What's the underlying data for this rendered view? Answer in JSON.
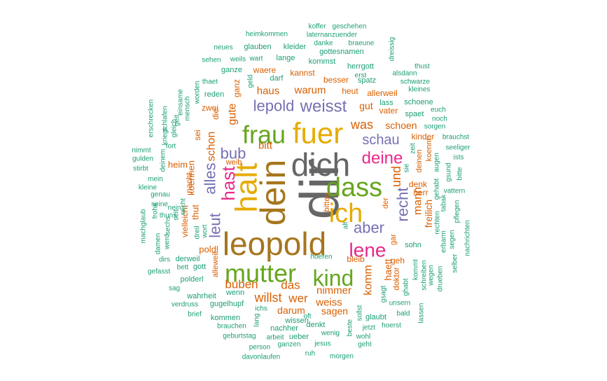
{
  "palette": {
    "c1": "#666666",
    "c2": "#A6761D",
    "c3": "#E6AB02",
    "c4": "#66A61E",
    "c5": "#E7298A",
    "c6": "#7570B3",
    "c7": "#D95F02",
    "c8": "#1B9E77"
  },
  "words": [
    {
      "text": "dir",
      "color": "c1",
      "size": 10
    },
    {
      "text": "dich",
      "color": "c1",
      "size": 9.2
    },
    {
      "text": "dein",
      "color": "c2",
      "size": 8.6
    },
    {
      "text": "leopold",
      "color": "c2",
      "size": 8.6
    },
    {
      "text": "halt",
      "color": "c3",
      "size": 8.0
    },
    {
      "text": "fuer",
      "color": "c3",
      "size": 8.0
    },
    {
      "text": "ich",
      "color": "c3",
      "size": 7.2
    },
    {
      "text": "dass",
      "color": "c4",
      "size": 7.0
    },
    {
      "text": "frau",
      "color": "c4",
      "size": 6.6
    },
    {
      "text": "mutter",
      "color": "c4",
      "size": 6.6
    },
    {
      "text": "kind",
      "color": "c4",
      "size": 6.0
    },
    {
      "text": "lene",
      "color": "c5",
      "size": 5.4
    },
    {
      "text": "hast",
      "color": "c5",
      "size": 5.4
    },
    {
      "text": "deine",
      "color": "c5",
      "size": 5.0
    },
    {
      "text": "weisst",
      "color": "c6",
      "size": 5.0
    },
    {
      "text": "lepold",
      "color": "c6",
      "size": 5.0
    },
    {
      "text": "bub",
      "color": "c6",
      "size": 4.6
    },
    {
      "text": "alles",
      "color": "c6",
      "size": 4.6
    },
    {
      "text": "aber",
      "color": "c6",
      "size": 4.6
    },
    {
      "text": "leut",
      "color": "c6",
      "size": 4.4
    },
    {
      "text": "recht",
      "color": "c6",
      "size": 4.4
    },
    {
      "text": "schau",
      "color": "c6",
      "size": 4.2
    },
    {
      "text": "was",
      "color": "c7",
      "size": 4.0
    },
    {
      "text": "und",
      "color": "c7",
      "size": 3.8
    },
    {
      "text": "mann",
      "color": "c7",
      "size": 3.6
    },
    {
      "text": "komm",
      "color": "c7",
      "size": 3.6
    },
    {
      "text": "willst",
      "color": "c7",
      "size": 3.6
    },
    {
      "text": "buben",
      "color": "c7",
      "size": 3.4
    },
    {
      "text": "das",
      "color": "c7",
      "size": 3.4
    },
    {
      "text": "wer",
      "color": "c7",
      "size": 3.4
    },
    {
      "text": "gute",
      "color": "c7",
      "size": 3.2
    },
    {
      "text": "bitt",
      "color": "c7",
      "size": 3.2
    },
    {
      "text": "schon",
      "color": "c7",
      "size": 3.2
    },
    {
      "text": "haus",
      "color": "c7",
      "size": 3.0
    },
    {
      "text": "warum",
      "color": "c7",
      "size": 3.0
    },
    {
      "text": "nimmer",
      "color": "c7",
      "size": 3.0
    },
    {
      "text": "weiss",
      "color": "c7",
      "size": 3.0
    },
    {
      "text": "sagen",
      "color": "c7",
      "size": 2.8
    },
    {
      "text": "darum",
      "color": "c7",
      "size": 2.8
    },
    {
      "text": "freilich",
      "color": "c7",
      "size": 2.8
    },
    {
      "text": "gut",
      "color": "c7",
      "size": 2.8
    },
    {
      "text": "schoen",
      "color": "c7",
      "size": 2.8
    },
    {
      "text": "haett",
      "color": "c7",
      "size": 2.8
    },
    {
      "text": "poldl",
      "color": "c7",
      "size": 2.8
    },
    {
      "text": "thut",
      "color": "c7",
      "size": 2.8
    },
    {
      "text": "koennen",
      "color": "c7",
      "size": 2.6
    },
    {
      "text": "heim",
      "color": "c7",
      "size": 2.6
    },
    {
      "text": "nacht",
      "color": "c7",
      "size": 2.4
    },
    {
      "text": "zwei",
      "color": "c7",
      "size": 2.4
    },
    {
      "text": "bleib",
      "color": "c7",
      "size": 2.4
    },
    {
      "text": "geh",
      "color": "c7",
      "size": 2.4
    },
    {
      "text": "besser",
      "color": "c7",
      "size": 2.4
    },
    {
      "text": "heut",
      "color": "c7",
      "size": 2.4
    },
    {
      "text": "kannst",
      "color": "c7",
      "size": 2.4
    },
    {
      "text": "waere",
      "color": "c7",
      "size": 2.4
    },
    {
      "text": "ganz",
      "color": "c7",
      "size": 2.4
    },
    {
      "text": "die",
      "color": "c7",
      "size": 2.4
    },
    {
      "text": "sei",
      "color": "c7",
      "size": 2.4
    },
    {
      "text": "vielleicht",
      "color": "c7",
      "size": 2.4
    },
    {
      "text": "allerweil",
      "color": "c7",
      "size": 2.4
    },
    {
      "text": "vater",
      "color": "c7",
      "size": 2.4
    },
    {
      "text": "kinder",
      "color": "c7",
      "size": 2.4
    },
    {
      "text": "denk",
      "color": "c7",
      "size": 2.4
    },
    {
      "text": "herr",
      "color": "c7",
      "size": 2.4
    },
    {
      "text": "doktor",
      "color": "c7",
      "size": 2.4
    },
    {
      "text": "alleweil",
      "color": "c7",
      "size": 2.2
    },
    {
      "text": "weib",
      "color": "c7",
      "size": 2.2
    },
    {
      "text": "koennt",
      "color": "c7",
      "size": 2.2
    },
    {
      "text": "deinen",
      "color": "c7",
      "size": 2.2
    },
    {
      "text": "bitten",
      "color": "c7",
      "size": 2.2
    },
    {
      "text": "der",
      "color": "c7",
      "size": 2.2
    },
    {
      "text": "gar",
      "color": "c7",
      "size": 2.2
    },
    {
      "text": "spaet",
      "color": "c8",
      "size": 2.2
    },
    {
      "text": "lass",
      "color": "c8",
      "size": 2.2
    },
    {
      "text": "schoene",
      "color": "c8",
      "size": 2.2
    },
    {
      "text": "herrgott",
      "color": "c8",
      "size": 2.2
    },
    {
      "text": "spatz",
      "color": "c8",
      "size": 2.2
    },
    {
      "text": "kommst",
      "color": "c8",
      "size": 2.2
    },
    {
      "text": "gottesnamen",
      "color": "c8",
      "size": 2.2
    },
    {
      "text": "kleider",
      "color": "c8",
      "size": 2.2
    },
    {
      "text": "glauben",
      "color": "c8",
      "size": 2.2
    },
    {
      "text": "lange",
      "color": "c8",
      "size": 2.2
    },
    {
      "text": "ganze",
      "color": "c8",
      "size": 2.2
    },
    {
      "text": "darf",
      "color": "c8",
      "size": 2.2
    },
    {
      "text": "reden",
      "color": "c8",
      "size": 2.2
    },
    {
      "text": "wenn",
      "color": "c8",
      "size": 2.2
    },
    {
      "text": "wahrheit",
      "color": "c8",
      "size": 2.2
    },
    {
      "text": "gugelhupf",
      "color": "c8",
      "size": 2.2
    },
    {
      "text": "kommen",
      "color": "c8",
      "size": 2.2
    },
    {
      "text": "nachher",
      "color": "c8",
      "size": 2.2
    },
    {
      "text": "wissen",
      "color": "c8",
      "size": 2.2
    },
    {
      "text": "denkt",
      "color": "c8",
      "size": 2.2
    },
    {
      "text": "ueber",
      "color": "c8",
      "size": 2.2
    },
    {
      "text": "glaubt",
      "color": "c8",
      "size": 2.2
    },
    {
      "text": "sohn",
      "color": "c8",
      "size": 2.2
    },
    {
      "text": "derweil",
      "color": "c8",
      "size": 2.2
    },
    {
      "text": "gott",
      "color": "c8",
      "size": 2.2
    },
    {
      "text": "polderl",
      "color": "c8",
      "size": 2.2
    },
    {
      "text": "ichs",
      "color": "c8",
      "size": 2.0
    },
    {
      "text": "hoeren",
      "color": "c8",
      "size": 2.0
    },
    {
      "text": "wenig",
      "color": "c8",
      "size": 2.0
    },
    {
      "text": "genau",
      "color": "c8",
      "size": 2.0
    },
    {
      "text": "augen",
      "color": "c8",
      "size": 2.0
    },
    {
      "text": "gehabt",
      "color": "c8",
      "size": 2.0
    },
    {
      "text": "rechten",
      "color": "c8",
      "size": 2.0
    },
    {
      "text": "erbarm",
      "color": "c8",
      "size": 2.0
    },
    {
      "text": "kommt",
      "color": "c8",
      "size": 2.0
    },
    {
      "text": "schreiben",
      "color": "c8",
      "size": 2.0
    },
    {
      "text": "wegen",
      "color": "c8",
      "size": 2.0
    },
    {
      "text": "kriegt",
      "color": "c8",
      "size": 2.0
    },
    {
      "text": "geit",
      "color": "c8",
      "size": 2.0
    },
    {
      "text": "mensch",
      "color": "c8",
      "size": 2.0
    },
    {
      "text": "worden",
      "color": "c8",
      "size": 2.0
    },
    {
      "text": "sechs",
      "color": "c8",
      "size": 2.0
    },
    {
      "text": "dreil",
      "color": "c8",
      "size": 2.0
    },
    {
      "text": "wort",
      "color": "c8",
      "size": 2.0
    },
    {
      "text": "thaet",
      "color": "c8",
      "size": 2.0
    },
    {
      "text": "wart",
      "color": "c8",
      "size": 2.0
    },
    {
      "text": "weils",
      "color": "c8",
      "size": 2.0
    },
    {
      "text": "sehen",
      "color": "c8",
      "size": 1.8
    },
    {
      "text": "neues",
      "color": "c8",
      "size": 1.8
    },
    {
      "text": "heimkommen",
      "color": "c8",
      "size": 1.8
    },
    {
      "text": "laternanzuender",
      "color": "c8",
      "size": 1.8
    },
    {
      "text": "koffer",
      "color": "c8",
      "size": 1.8
    },
    {
      "text": "geschehen",
      "color": "c8",
      "size": 1.8
    },
    {
      "text": "danke",
      "color": "c8",
      "size": 1.8
    },
    {
      "text": "braeune",
      "color": "c8",
      "size": 1.8
    },
    {
      "text": "dreissig",
      "color": "c8",
      "size": 1.8
    },
    {
      "text": "thust",
      "color": "c8",
      "size": 1.8
    },
    {
      "text": "alsdann",
      "color": "c8",
      "size": 1.8
    },
    {
      "text": "schwarze",
      "color": "c8",
      "size": 1.8
    },
    {
      "text": "kleines",
      "color": "c8",
      "size": 1.8
    },
    {
      "text": "euch",
      "color": "c8",
      "size": 1.8
    },
    {
      "text": "noch",
      "color": "c8",
      "size": 1.8
    },
    {
      "text": "sorgen",
      "color": "c8",
      "size": 1.8
    },
    {
      "text": "brauchst",
      "color": "c8",
      "size": 1.8
    },
    {
      "text": "seeliger",
      "color": "c8",
      "size": 1.8
    },
    {
      "text": "ists",
      "color": "c8",
      "size": 1.8
    },
    {
      "text": "bitte",
      "color": "c8",
      "size": 1.8
    },
    {
      "text": "vattern",
      "color": "c8",
      "size": 1.8
    },
    {
      "text": "gsund",
      "color": "c8",
      "size": 1.8
    },
    {
      "text": "tabak",
      "color": "c8",
      "size": 1.8
    },
    {
      "text": "pflegen",
      "color": "c8",
      "size": 1.8
    },
    {
      "text": "nachrichten",
      "color": "c8",
      "size": 1.8
    },
    {
      "text": "segen",
      "color": "c8",
      "size": 1.8
    },
    {
      "text": "selber",
      "color": "c8",
      "size": 1.8
    },
    {
      "text": "drueben",
      "color": "c8",
      "size": 1.8
    },
    {
      "text": "lassen",
      "color": "c8",
      "size": 1.8
    },
    {
      "text": "bald",
      "color": "c8",
      "size": 1.8
    },
    {
      "text": "unsern",
      "color": "c8",
      "size": 1.8
    },
    {
      "text": "ghabt",
      "color": "c8",
      "size": 1.8
    },
    {
      "text": "gsagt",
      "color": "c8",
      "size": 1.8
    },
    {
      "text": "hoerst",
      "color": "c8",
      "size": 1.8
    },
    {
      "text": "jetzt",
      "color": "c8",
      "size": 1.8
    },
    {
      "text": "wohl",
      "color": "c8",
      "size": 1.8
    },
    {
      "text": "geht",
      "color": "c8",
      "size": 1.8
    },
    {
      "text": "morgen",
      "color": "c8",
      "size": 1.8
    },
    {
      "text": "ruh",
      "color": "c8",
      "size": 1.8
    },
    {
      "text": "jesus",
      "color": "c8",
      "size": 1.8
    },
    {
      "text": "beste",
      "color": "c8",
      "size": 1.8
    },
    {
      "text": "sollst",
      "color": "c8",
      "size": 1.8
    },
    {
      "text": "oft",
      "color": "c8",
      "size": 1.8
    },
    {
      "text": "ganzen",
      "color": "c8",
      "size": 1.8
    },
    {
      "text": "arbeit",
      "color": "c8",
      "size": 1.8
    },
    {
      "text": "person",
      "color": "c8",
      "size": 1.8
    },
    {
      "text": "davonlaufen",
      "color": "c8",
      "size": 1.8
    },
    {
      "text": "geburtstag",
      "color": "c8",
      "size": 1.8
    },
    {
      "text": "brauchen",
      "color": "c8",
      "size": 1.8
    },
    {
      "text": "lang",
      "color": "c8",
      "size": 1.8
    },
    {
      "text": "brief",
      "color": "c8",
      "size": 1.8
    },
    {
      "text": "verdruss",
      "color": "c8",
      "size": 1.8
    },
    {
      "text": "sag",
      "color": "c8",
      "size": 1.8
    },
    {
      "text": "gefasst",
      "color": "c8",
      "size": 1.8
    },
    {
      "text": "bett",
      "color": "c8",
      "size": 1.8
    },
    {
      "text": "dirs",
      "color": "c8",
      "size": 1.8
    },
    {
      "text": "damen",
      "color": "c8",
      "size": 1.8
    },
    {
      "text": "werd",
      "color": "c8",
      "size": 1.8
    },
    {
      "text": "machglaub",
      "color": "c8",
      "size": 1.8
    },
    {
      "text": "frohe",
      "color": "c8",
      "size": 1.8
    },
    {
      "text": "seine",
      "color": "c8",
      "size": 1.8
    },
    {
      "text": "kleine",
      "color": "c8",
      "size": 1.8
    },
    {
      "text": "mein",
      "color": "c8",
      "size": 1.8
    },
    {
      "text": "stirbt",
      "color": "c8",
      "size": 1.8
    },
    {
      "text": "gulden",
      "color": "c8",
      "size": 1.8
    },
    {
      "text": "nimmt",
      "color": "c8",
      "size": 1.8
    },
    {
      "text": "deinem",
      "color": "c8",
      "size": 1.8
    },
    {
      "text": "fort",
      "color": "c8",
      "size": 1.8
    },
    {
      "text": "erschrecken",
      "color": "c8",
      "size": 1.8
    },
    {
      "text": "schlafen",
      "color": "c8",
      "size": 1.8
    },
    {
      "text": "gleich",
      "color": "c8",
      "size": 1.8
    },
    {
      "text": "einsame",
      "color": "c8",
      "size": 1.8
    },
    {
      "text": "nein",
      "color": "c8",
      "size": 1.8
    },
    {
      "text": "thuns",
      "color": "c8",
      "size": 1.8
    },
    {
      "text": "seit",
      "color": "c8",
      "size": 1.8
    },
    {
      "text": "secht",
      "color": "c8",
      "size": 1.8
    },
    {
      "text": "alt",
      "color": "c8",
      "size": 1.8
    },
    {
      "text": "geld",
      "color": "c8",
      "size": 1.8
    },
    {
      "text": "erst",
      "color": "c8",
      "size": 1.8
    },
    {
      "text": "sie",
      "color": "c8",
      "size": 1.8
    },
    {
      "text": "zeit",
      "color": "c8",
      "size": 1.8
    }
  ]
}
